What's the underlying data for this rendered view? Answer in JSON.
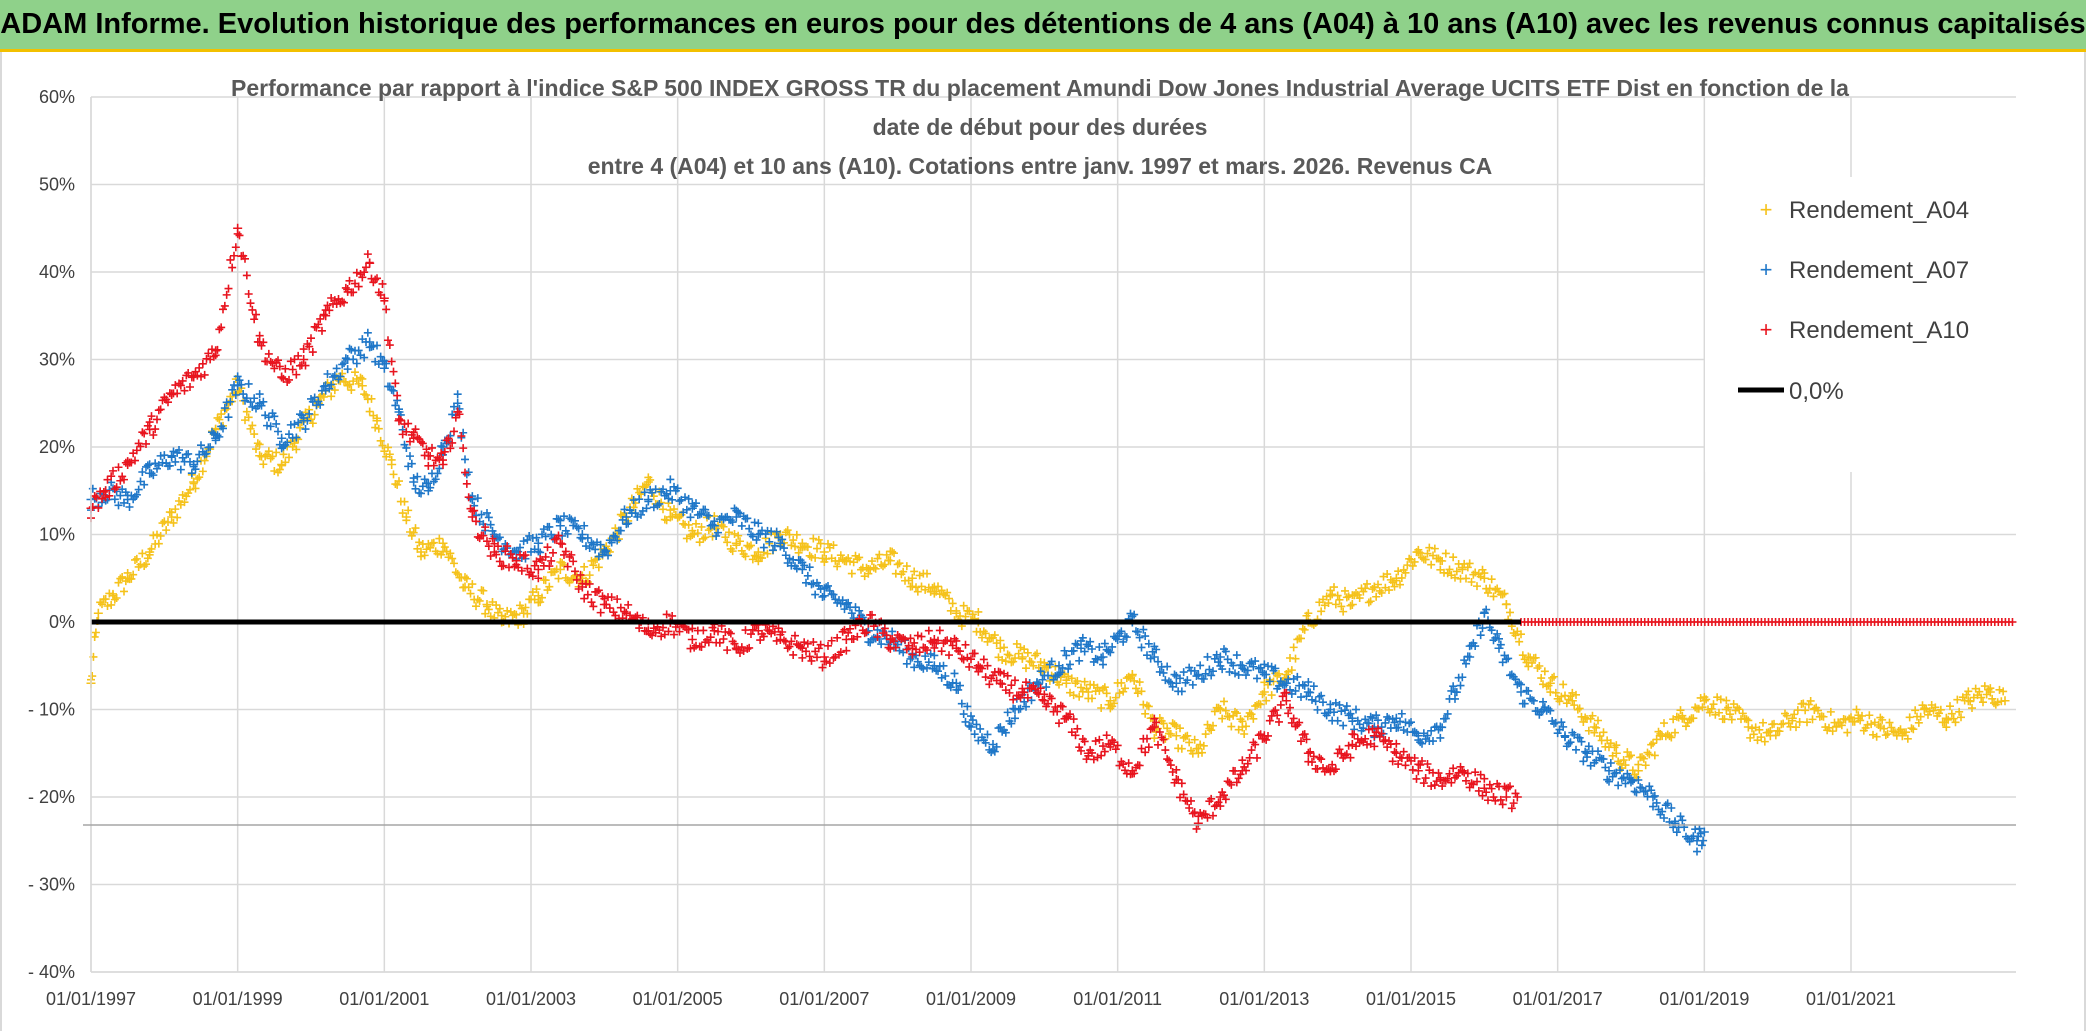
{
  "header": {
    "title": "ADAM Informe. Evolution historique des performances en euros pour des détentions de 4 ans (A04) à 10 ans (A10) avec les revenus connus capitalisés"
  },
  "colors": {
    "header_bg": "#8fd18a",
    "header_border": "#f2c000",
    "a04": "#f5c21b",
    "a07": "#1f77c8",
    "a10": "#e8141e",
    "zero": "#000000",
    "grid": "#d9d9d9"
  },
  "chart_data": {
    "type": "scatter",
    "title_lines": [
      "Performance par rapport à l'indice S&P 500 INDEX GROSS TR  du placement Amundi Dow Jones Industrial Average UCITS ETF Dist en fonction de la",
      "date de début pour des durées",
      "entre 4 (A04) et 10 ans (A10). Cotations entre janv. 1997 et mars. 2026. Revenus CA"
    ],
    "ylim": [
      -40,
      60
    ],
    "y_ticks": [
      60,
      50,
      40,
      30,
      20,
      10,
      0,
      -10,
      -20,
      -30,
      -40
    ],
    "y_tick_labels": [
      "60%",
      "50%",
      "40%",
      "30%",
      "20%",
      "10%",
      "0%",
      "- 10%",
      "- 20%",
      "- 30%",
      "- 40%"
    ],
    "x_range_years": [
      1997.0,
      2023.25
    ],
    "x_ticks": [
      1997,
      1999,
      2001,
      2003,
      2005,
      2007,
      2009,
      2011,
      2013,
      2015,
      2017,
      2019,
      2021
    ],
    "x_tick_labels": [
      "01/01/1997",
      "01/01/1999",
      "01/01/2001",
      "01/01/2003",
      "01/01/2005",
      "01/01/2007",
      "01/01/2009",
      "01/01/2011",
      "01/01/2013",
      "01/01/2015",
      "01/01/2017",
      "01/01/2019",
      "01/01/2021"
    ],
    "grid": true,
    "legend_position": "top-right",
    "reference_line": {
      "name": "0,0%",
      "value": 0
    },
    "series": [
      {
        "name": "Rendement_A04",
        "marker": "+",
        "color": "#f5c21b",
        "x": [
          1997.0,
          1997.1,
          1997.3,
          1997.5,
          1997.8,
          1998.1,
          1998.4,
          1998.7,
          1999.0,
          1999.3,
          1999.6,
          1999.8,
          2000.1,
          2000.4,
          2000.7,
          2000.9,
          2001.1,
          2001.3,
          2001.5,
          2001.8,
          2002.1,
          2002.4,
          2002.6,
          2002.9,
          2003.1,
          2003.4,
          2003.7,
          2004.0,
          2004.3,
          2004.6,
          2004.9,
          2005.2,
          2005.5,
          2005.8,
          2006.1,
          2006.4,
          2006.7,
          2007.0,
          2007.3,
          2007.6,
          2007.9,
          2008.2,
          2008.5,
          2008.8,
          2009.1,
          2009.4,
          2009.7,
          2010.0,
          2010.3,
          2010.6,
          2010.9,
          2011.2,
          2011.5,
          2011.8,
          2012.1,
          2012.4,
          2012.7,
          2013.0,
          2013.3,
          2013.6,
          2013.9,
          2014.2,
          2014.5,
          2014.8,
          2015.1,
          2015.4,
          2015.7,
          2016.0,
          2016.3,
          2016.6,
          2016.9,
          2017.2,
          2017.5,
          2017.8,
          2018.1,
          2018.4,
          2018.7,
          2019.0,
          2019.3,
          2019.6,
          2019.9,
          2020.2,
          2020.5,
          2020.8,
          2021.1,
          2021.4,
          2021.7,
          2022.0,
          2022.3,
          2022.6,
          2022.9,
          2023.1
        ],
        "y": [
          -7,
          1,
          3,
          5,
          8,
          12,
          16,
          22,
          27,
          19,
          18,
          21,
          25,
          28,
          27,
          23,
          18,
          12,
          8,
          9,
          4,
          2,
          0,
          1,
          3,
          6,
          5,
          8,
          12,
          16,
          12,
          10,
          11,
          9,
          8,
          10,
          9,
          8,
          7,
          6,
          7,
          5,
          4,
          1,
          0,
          -3,
          -4,
          -5,
          -7,
          -8,
          -9,
          -6,
          -12,
          -13,
          -15,
          -10,
          -12,
          -8,
          -6,
          0,
          3,
          2,
          4,
          5,
          8,
          7,
          6,
          5,
          2,
          -4,
          -7,
          -9,
          -12,
          -15,
          -17,
          -13,
          -11,
          -9,
          -10,
          -12,
          -13,
          -11,
          -10,
          -12,
          -11,
          -12,
          -13,
          -10,
          -11,
          -9,
          -8,
          -9
        ]
      },
      {
        "name": "Rendement_A07",
        "marker": "+",
        "color": "#1f77c8",
        "x": [
          1997.0,
          1997.2,
          1997.5,
          1997.8,
          1998.1,
          1998.4,
          1998.7,
          1999.0,
          1999.3,
          1999.6,
          1999.9,
          2000.2,
          2000.5,
          2000.8,
          2001.0,
          2001.2,
          2001.4,
          2001.6,
          2001.8,
          2002.0,
          2002.2,
          2002.5,
          2002.8,
          2003.1,
          2003.4,
          2003.7,
          2004.0,
          2004.3,
          2004.6,
          2004.9,
          2005.2,
          2005.5,
          2005.8,
          2006.1,
          2006.4,
          2006.7,
          2007.0,
          2007.3,
          2007.6,
          2007.9,
          2008.2,
          2008.5,
          2008.8,
          2009.0,
          2009.3,
          2009.6,
          2009.9,
          2010.2,
          2010.5,
          2010.8,
          2011.0,
          2011.2,
          2011.5,
          2011.8,
          2012.1,
          2012.4,
          2012.7,
          2013.0,
          2013.3,
          2013.6,
          2013.9,
          2014.2,
          2014.5,
          2014.8,
          2015.1,
          2015.4,
          2015.6,
          2015.8,
          2016.0,
          2016.2,
          2016.5,
          2016.8,
          2017.1,
          2017.4,
          2017.7,
          2018.0,
          2018.3,
          2018.6,
          2018.9,
          2019.0
        ],
        "y": [
          14,
          15,
          14,
          17,
          19,
          18,
          21,
          27,
          25,
          21,
          23,
          27,
          30,
          32,
          29,
          24,
          16,
          15,
          20,
          25,
          14,
          10,
          8,
          9,
          11,
          10,
          8,
          12,
          14,
          15,
          13,
          11,
          12,
          10,
          9,
          6,
          3,
          2,
          -1,
          -2,
          -4,
          -5,
          -7,
          -12,
          -14,
          -10,
          -7,
          -5,
          -3,
          -4,
          -2,
          0,
          -4,
          -7,
          -6,
          -4,
          -5,
          -6,
          -7,
          -8,
          -10,
          -11,
          -12,
          -11,
          -13,
          -12,
          -8,
          -4,
          1,
          -3,
          -8,
          -10,
          -13,
          -15,
          -17,
          -18,
          -20,
          -23,
          -25,
          -24
        ]
      },
      {
        "name": "Rendement_A10",
        "marker": "+",
        "color": "#e8141e",
        "x": [
          1997.0,
          1997.2,
          1997.5,
          1997.8,
          1998.1,
          1998.4,
          1998.7,
          1999.0,
          1999.3,
          1999.6,
          1999.9,
          2000.2,
          2000.5,
          2000.8,
          2001.0,
          2001.2,
          2001.4,
          2001.6,
          2001.8,
          2002.0,
          2002.2,
          2002.5,
          2002.8,
          2003.1,
          2003.4,
          2003.7,
          2004.0,
          2004.3,
          2004.6,
          2004.9,
          2005.2,
          2005.5,
          2005.8,
          2006.1,
          2006.4,
          2006.7,
          2007.0,
          2007.3,
          2007.6,
          2007.9,
          2008.2,
          2008.5,
          2008.8,
          2009.1,
          2009.4,
          2009.7,
          2010.0,
          2010.3,
          2010.6,
          2010.9,
          2011.2,
          2011.5,
          2011.8,
          2012.1,
          2012.4,
          2012.7,
          2013.0,
          2013.3,
          2013.6,
          2013.9,
          2014.2,
          2014.5,
          2014.8,
          2015.1,
          2015.4,
          2015.7,
          2016.0,
          2016.3,
          2016.45
        ],
        "y": [
          13,
          15,
          18,
          22,
          26,
          28,
          31,
          45,
          32,
          28,
          30,
          35,
          38,
          41,
          37,
          23,
          21,
          19,
          18,
          24,
          12,
          8,
          7,
          6,
          9,
          4,
          2,
          1,
          -1,
          0,
          -2,
          -1,
          -3,
          -1,
          -2,
          -3,
          -4,
          -2,
          0,
          -2,
          -3,
          -2,
          -3,
          -5,
          -7,
          -8,
          -9,
          -11,
          -15,
          -14,
          -17,
          -12,
          -18,
          -23,
          -20,
          -17,
          -13,
          -9,
          -15,
          -17,
          -14,
          -13,
          -15,
          -17,
          -18,
          -17,
          -19,
          -20,
          -20
        ]
      },
      {
        "name": "Rendement_A10_zero",
        "marker": "+",
        "color": "#e8141e",
        "x": [
          2016.5,
          2023.25
        ],
        "y": [
          0,
          0
        ]
      }
    ]
  },
  "legend": {
    "a04": "Rendement_A04",
    "a07": "Rendement_A07",
    "a10": "Rendement_A10",
    "zero": "0,0%"
  }
}
